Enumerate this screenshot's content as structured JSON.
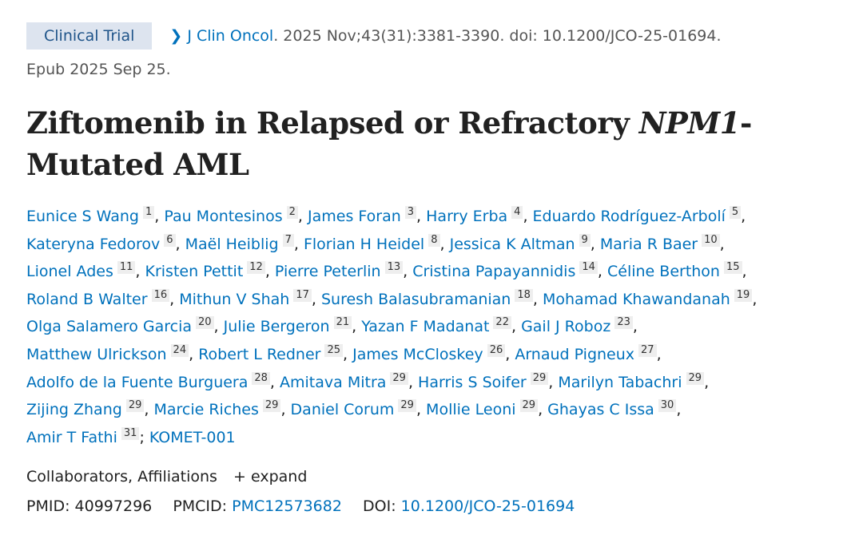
{
  "badge": "Clinical Trial",
  "journal": "J Clin Oncol",
  "citation": ". 2025 Nov;43(31):3381-3390. doi: 10.1200/JCO-25-01694.",
  "epub": "Epub 2025 Sep 25.",
  "title_before": "Ziftomenib in Relapsed or Refractory ",
  "title_italic": "NPM1",
  "title_after": "-Mutated AML",
  "authors": [
    [
      [
        "Eunice S Wang",
        "1"
      ],
      [
        "Pau Montesinos",
        "2"
      ],
      [
        "James Foran",
        "3"
      ],
      [
        "Harry Erba",
        "4"
      ],
      [
        "Eduardo Rodríguez-Arbolí",
        "5"
      ]
    ],
    [
      [
        "Kateryna Fedorov",
        "6"
      ],
      [
        "Maël Heiblig",
        "7"
      ],
      [
        "Florian H Heidel",
        "8"
      ],
      [
        "Jessica K Altman",
        "9"
      ],
      [
        "Maria R Baer",
        "10"
      ]
    ],
    [
      [
        "Lionel Ades",
        "11"
      ],
      [
        "Kristen Pettit",
        "12"
      ],
      [
        "Pierre Peterlin",
        "13"
      ],
      [
        "Cristina Papayannidis",
        "14"
      ],
      [
        "Céline Berthon",
        "15"
      ]
    ],
    [
      [
        "Roland B Walter",
        "16"
      ],
      [
        "Mithun V Shah",
        "17"
      ],
      [
        "Suresh Balasubramanian",
        "18"
      ],
      [
        "Mohamad Khawandanah",
        "19"
      ]
    ],
    [
      [
        "Olga Salamero Garcia",
        "20"
      ],
      [
        "Julie Bergeron",
        "21"
      ],
      [
        "Yazan F Madanat",
        "22"
      ],
      [
        "Gail J Roboz",
        "23"
      ]
    ],
    [
      [
        "Matthew Ulrickson",
        "24"
      ],
      [
        "Robert L Redner",
        "25"
      ],
      [
        "James McCloskey",
        "26"
      ],
      [
        "Arnaud Pigneux",
        "27"
      ]
    ],
    [
      [
        "Adolfo de la Fuente Burguera",
        "28"
      ],
      [
        "Amitava Mitra",
        "29"
      ],
      [
        "Harris S Soifer",
        "29"
      ],
      [
        "Marilyn Tabachri",
        "29"
      ]
    ],
    [
      [
        "Zijing Zhang",
        "29"
      ],
      [
        "Marcie Riches",
        "29"
      ],
      [
        "Daniel Corum",
        "29"
      ],
      [
        "Mollie Leoni",
        "29"
      ],
      [
        "Ghayas C Issa",
        "30"
      ]
    ],
    [
      [
        "Amir T Fathi",
        "31"
      ]
    ]
  ],
  "group": "KOMET-001",
  "collab_label": "Collaborators, Affiliations",
  "expand": "expand",
  "pmid_label": "PMID:",
  "pmid": "40997296",
  "pmcid_label": "PMCID:",
  "pmcid": "PMC12573682",
  "doi_label": "DOI:",
  "doi": "10.1200/JCO-25-01694"
}
